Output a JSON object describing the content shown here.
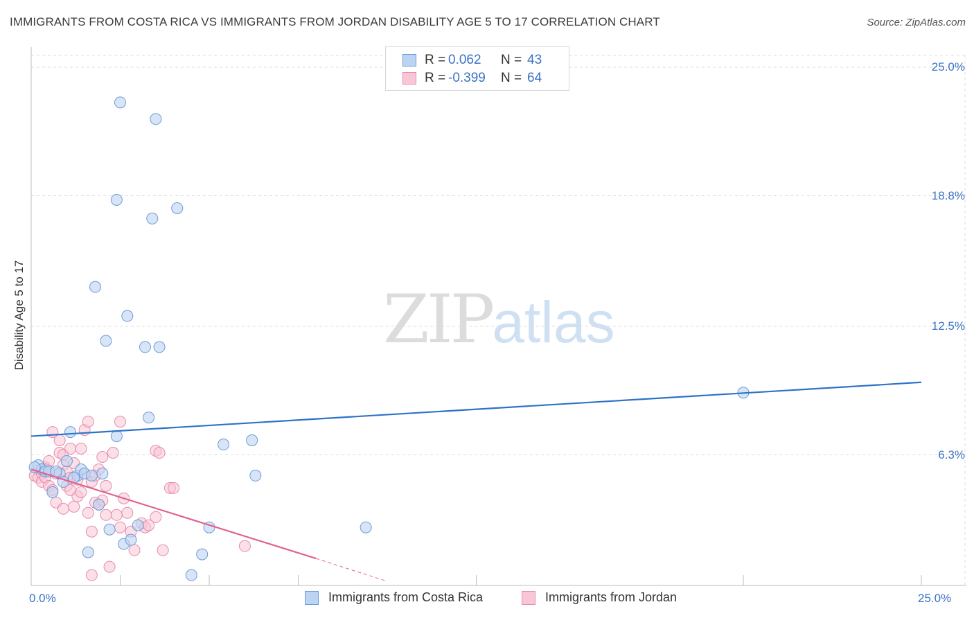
{
  "title": "IMMIGRANTS FROM COSTA RICA VS IMMIGRANTS FROM JORDAN DISABILITY AGE 5 TO 17 CORRELATION CHART",
  "source": "Source: ZipAtlas.com",
  "watermark": {
    "zip": "ZIP",
    "atlas": "atlas"
  },
  "legend_box": {
    "rows": [
      {
        "r_label": "R =",
        "r_value": "0.062",
        "n_label": "N =",
        "n_value": "43"
      },
      {
        "r_label": "R =",
        "r_value": "-0.399",
        "n_label": "N =",
        "n_value": "64"
      }
    ]
  },
  "colors": {
    "costa_rica_fill": "#bcd4f2",
    "costa_rica_stroke": "#6a9bd8",
    "costa_rica_line": "#2e72c8",
    "jordan_fill": "#f8c6d6",
    "jordan_stroke": "#e88aab",
    "jordan_line": "#e0628e",
    "tick_text": "#3a73c4",
    "grid": "#dcdcdc"
  },
  "chart_data": {
    "type": "scatter",
    "title": "IMMIGRANTS FROM COSTA RICA VS IMMIGRANTS FROM JORDAN DISABILITY AGE 5 TO 17 CORRELATION CHART",
    "xlabel": "",
    "ylabel": "Disability Age 5 to 17",
    "xlim": [
      0,
      25
    ],
    "ylim": [
      0,
      25
    ],
    "x_ticks": [
      "0.0%",
      "25.0%"
    ],
    "y_ticks": [
      {
        "value": 25.0,
        "label": "25.0%"
      },
      {
        "value": 18.8,
        "label": "18.8%"
      },
      {
        "value": 12.5,
        "label": "12.5%"
      },
      {
        "value": 6.3,
        "label": "6.3%"
      }
    ],
    "legend": [
      "Immigrants from Costa Rica",
      "Immigrants from Jordan"
    ],
    "series": [
      {
        "name": "Immigrants from Costa Rica",
        "r": 0.062,
        "n": 43,
        "trend": {
          "x": [
            0,
            25
          ],
          "y": [
            7.2,
            9.8
          ]
        },
        "points": [
          [
            0.2,
            5.8
          ],
          [
            0.3,
            5.6
          ],
          [
            0.4,
            5.5
          ],
          [
            0.5,
            5.5
          ],
          [
            0.6,
            4.5
          ],
          [
            0.8,
            5.4
          ],
          [
            0.9,
            5.0
          ],
          [
            1.0,
            6.0
          ],
          [
            1.1,
            7.4
          ],
          [
            1.3,
            5.3
          ],
          [
            1.4,
            5.6
          ],
          [
            1.5,
            5.4
          ],
          [
            1.6,
            1.6
          ],
          [
            1.7,
            5.3
          ],
          [
            1.8,
            14.4
          ],
          [
            1.9,
            3.9
          ],
          [
            2.0,
            5.4
          ],
          [
            2.1,
            11.8
          ],
          [
            2.2,
            2.7
          ],
          [
            2.4,
            18.6
          ],
          [
            2.4,
            7.2
          ],
          [
            2.5,
            23.3
          ],
          [
            2.6,
            2.0
          ],
          [
            2.7,
            13.0
          ],
          [
            2.8,
            2.2
          ],
          [
            3.0,
            2.9
          ],
          [
            3.2,
            11.5
          ],
          [
            3.3,
            8.1
          ],
          [
            3.4,
            17.7
          ],
          [
            3.5,
            22.5
          ],
          [
            3.6,
            11.5
          ],
          [
            4.1,
            18.2
          ],
          [
            4.5,
            0.5
          ],
          [
            4.8,
            1.5
          ],
          [
            5.0,
            2.8
          ],
          [
            5.4,
            6.8
          ],
          [
            6.2,
            7.0
          ],
          [
            6.3,
            5.3
          ],
          [
            9.4,
            2.8
          ],
          [
            20.0,
            9.3
          ],
          [
            0.1,
            5.7
          ],
          [
            0.7,
            5.5
          ],
          [
            1.2,
            5.2
          ]
        ]
      },
      {
        "name": "Immigrants from Jordan",
        "r": -0.399,
        "n": 64,
        "trend": {
          "x": [
            0,
            8.0
          ],
          "y": [
            5.6,
            1.3
          ]
        },
        "trend_dashed": {
          "x": [
            8.0,
            10.0
          ],
          "y": [
            1.3,
            0.2
          ]
        },
        "points": [
          [
            0.1,
            5.3
          ],
          [
            0.2,
            5.6
          ],
          [
            0.2,
            5.2
          ],
          [
            0.3,
            5.4
          ],
          [
            0.3,
            5.0
          ],
          [
            0.4,
            5.7
          ],
          [
            0.4,
            5.2
          ],
          [
            0.5,
            4.8
          ],
          [
            0.5,
            6.0
          ],
          [
            0.6,
            4.6
          ],
          [
            0.6,
            7.4
          ],
          [
            0.7,
            4.0
          ],
          [
            0.7,
            5.4
          ],
          [
            0.8,
            7.0
          ],
          [
            0.8,
            6.4
          ],
          [
            0.9,
            6.3
          ],
          [
            0.9,
            5.8
          ],
          [
            1.0,
            5.5
          ],
          [
            1.0,
            4.8
          ],
          [
            1.1,
            5.2
          ],
          [
            1.1,
            6.6
          ],
          [
            1.2,
            3.8
          ],
          [
            1.2,
            5.9
          ],
          [
            1.3,
            5.1
          ],
          [
            1.3,
            4.3
          ],
          [
            1.4,
            6.6
          ],
          [
            1.4,
            4.5
          ],
          [
            1.5,
            7.5
          ],
          [
            1.5,
            5.4
          ],
          [
            1.6,
            7.9
          ],
          [
            1.6,
            3.5
          ],
          [
            1.7,
            5.0
          ],
          [
            1.7,
            2.6
          ],
          [
            1.8,
            5.3
          ],
          [
            1.8,
            4.0
          ],
          [
            1.9,
            3.9
          ],
          [
            1.9,
            5.6
          ],
          [
            2.0,
            4.1
          ],
          [
            2.0,
            6.2
          ],
          [
            2.1,
            3.4
          ],
          [
            2.1,
            4.8
          ],
          [
            2.2,
            0.9
          ],
          [
            2.3,
            6.4
          ],
          [
            2.4,
            3.4
          ],
          [
            2.5,
            2.8
          ],
          [
            2.5,
            7.9
          ],
          [
            2.6,
            4.2
          ],
          [
            2.7,
            3.5
          ],
          [
            2.8,
            2.6
          ],
          [
            2.9,
            1.7
          ],
          [
            3.1,
            3.0
          ],
          [
            3.2,
            2.8
          ],
          [
            3.3,
            2.9
          ],
          [
            3.5,
            3.3
          ],
          [
            3.5,
            6.5
          ],
          [
            3.6,
            6.4
          ],
          [
            3.7,
            1.7
          ],
          [
            3.9,
            4.7
          ],
          [
            4.0,
            4.7
          ],
          [
            6.0,
            1.9
          ],
          [
            1.7,
            0.5
          ],
          [
            0.4,
            5.6
          ],
          [
            0.9,
            3.7
          ],
          [
            1.1,
            4.6
          ]
        ]
      }
    ]
  },
  "bottom_legend": {
    "costa_rica": "Immigrants from Costa Rica",
    "jordan": "Immigrants from Jordan"
  }
}
